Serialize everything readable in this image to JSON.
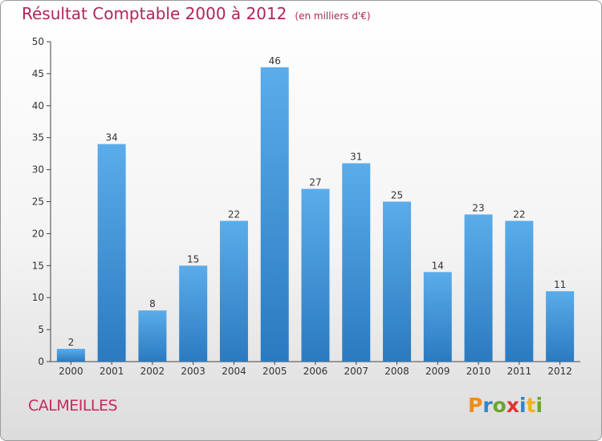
{
  "header": {
    "title": "Résultat Comptable 2000 à 2012",
    "unit": "(en milliers d'€)"
  },
  "footer": {
    "commune": "CALMEILLES",
    "brand": "Proxiti",
    "brand_colors": [
      "#f08c1c",
      "#2f86c8",
      "#6aa62a",
      "#e0332e",
      "#2f86c8",
      "#f0b21c",
      "#6aa62a"
    ]
  },
  "chart_data": {
    "type": "bar",
    "title": "Résultat Comptable 2000 à 2012",
    "subtitle": "(en milliers d'€)",
    "categories": [
      "2000",
      "2001",
      "2002",
      "2003",
      "2004",
      "2005",
      "2006",
      "2007",
      "2008",
      "2009",
      "2010",
      "2011",
      "2012"
    ],
    "values": [
      2,
      34,
      8,
      15,
      22,
      46,
      27,
      31,
      25,
      14,
      23,
      22,
      11
    ],
    "xlabel": "",
    "ylabel": "",
    "ylim": [
      0,
      50
    ],
    "yticks": [
      0,
      5,
      10,
      15,
      20,
      25,
      30,
      35,
      40,
      45,
      50
    ],
    "grid": false,
    "bar_color": "#3d95d8",
    "bar_color_light": "#5aacea",
    "bar_color_dark": "#2b7ac0"
  }
}
